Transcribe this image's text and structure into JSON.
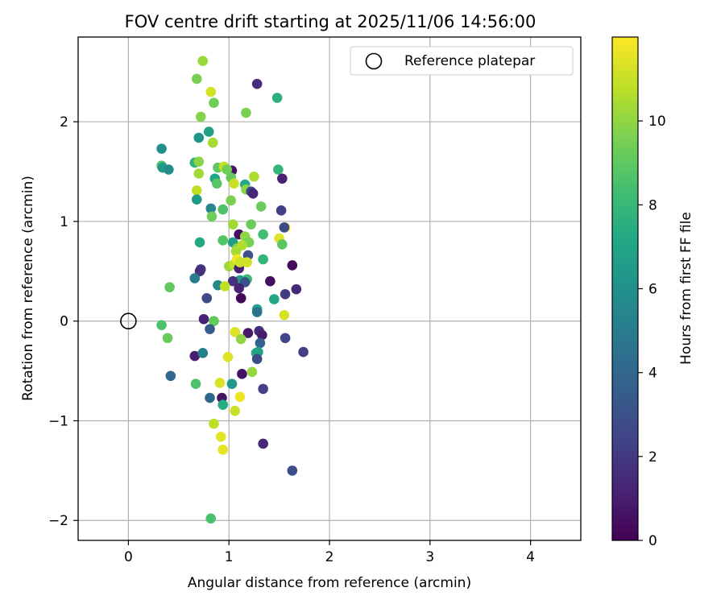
{
  "chart_data": {
    "type": "scatter",
    "title": "FOV centre drift starting at 2025/11/06 14:56:00",
    "xlabel": "Angular distance from reference (arcmin)",
    "ylabel": "Rotation from reference (arcmin)",
    "xlim": [
      -0.5,
      4.5
    ],
    "ylim": [
      -2.2,
      2.85
    ],
    "xticks": [
      0,
      1,
      2,
      3,
      4
    ],
    "yticks": [
      -2,
      -1,
      0,
      1,
      2
    ],
    "grid": true,
    "colorbar": {
      "label": "Hours from first FF file",
      "range": [
        0,
        12
      ],
      "ticks": [
        0,
        2,
        4,
        6,
        8,
        10
      ],
      "colormap": "viridis"
    },
    "reference": {
      "label": "Reference platepar",
      "x": 0,
      "y": 0,
      "marker": "open-circle"
    },
    "legend_position": "top-right",
    "points": [
      {
        "x": 0.74,
        "y": 2.61,
        "h": 10.2
      },
      {
        "x": 0.68,
        "y": 2.43,
        "h": 9.5
      },
      {
        "x": 0.82,
        "y": 2.3,
        "h": 11.2
      },
      {
        "x": 0.85,
        "y": 2.19,
        "h": 9.3
      },
      {
        "x": 1.28,
        "y": 2.38,
        "h": 1.5
      },
      {
        "x": 1.48,
        "y": 2.24,
        "h": 7.6
      },
      {
        "x": 0.72,
        "y": 2.05,
        "h": 9.8
      },
      {
        "x": 1.17,
        "y": 2.09,
        "h": 9.6
      },
      {
        "x": 0.8,
        "y": 1.9,
        "h": 6.8
      },
      {
        "x": 0.7,
        "y": 1.84,
        "h": 6.2
      },
      {
        "x": 0.84,
        "y": 1.79,
        "h": 10.4
      },
      {
        "x": 0.33,
        "y": 1.73,
        "h": 6.0
      },
      {
        "x": 0.66,
        "y": 1.59,
        "h": 7.7
      },
      {
        "x": 0.7,
        "y": 1.6,
        "h": 9.9
      },
      {
        "x": 0.33,
        "y": 1.56,
        "h": 8.7
      },
      {
        "x": 0.34,
        "y": 1.54,
        "h": 6.4
      },
      {
        "x": 0.4,
        "y": 1.52,
        "h": 5.8
      },
      {
        "x": 0.7,
        "y": 1.48,
        "h": 10.3
      },
      {
        "x": 0.89,
        "y": 1.54,
        "h": 9.0
      },
      {
        "x": 0.95,
        "y": 1.55,
        "h": 10.9
      },
      {
        "x": 1.03,
        "y": 1.51,
        "h": 0.7
      },
      {
        "x": 0.98,
        "y": 1.52,
        "h": 9.4
      },
      {
        "x": 0.86,
        "y": 1.43,
        "h": 7.0
      },
      {
        "x": 1.02,
        "y": 1.44,
        "h": 9.1
      },
      {
        "x": 1.05,
        "y": 1.38,
        "h": 11.0
      },
      {
        "x": 0.88,
        "y": 1.38,
        "h": 8.8
      },
      {
        "x": 1.16,
        "y": 1.37,
        "h": 7.2
      },
      {
        "x": 1.25,
        "y": 1.45,
        "h": 10.5
      },
      {
        "x": 1.49,
        "y": 1.52,
        "h": 7.9
      },
      {
        "x": 1.53,
        "y": 1.43,
        "h": 1.1
      },
      {
        "x": 0.68,
        "y": 1.31,
        "h": 10.8
      },
      {
        "x": 1.17,
        "y": 1.32,
        "h": 9.9
      },
      {
        "x": 1.22,
        "y": 1.3,
        "h": 2.4
      },
      {
        "x": 1.24,
        "y": 1.28,
        "h": 1.3
      },
      {
        "x": 0.68,
        "y": 1.22,
        "h": 6.5
      },
      {
        "x": 1.02,
        "y": 1.21,
        "h": 9.6
      },
      {
        "x": 1.32,
        "y": 1.15,
        "h": 9.2
      },
      {
        "x": 0.82,
        "y": 1.13,
        "h": 5.4
      },
      {
        "x": 0.94,
        "y": 1.12,
        "h": 8.6
      },
      {
        "x": 0.83,
        "y": 1.05,
        "h": 9.3
      },
      {
        "x": 1.52,
        "y": 1.11,
        "h": 2.2
      },
      {
        "x": 1.04,
        "y": 0.97,
        "h": 10.3
      },
      {
        "x": 1.22,
        "y": 0.97,
        "h": 9.2
      },
      {
        "x": 1.56,
        "y": 0.94,
        "h": 11.6
      },
      {
        "x": 1.55,
        "y": 0.94,
        "h": 2.7
      },
      {
        "x": 1.1,
        "y": 0.87,
        "h": 0.5
      },
      {
        "x": 1.34,
        "y": 0.87,
        "h": 8.3
      },
      {
        "x": 1.16,
        "y": 0.85,
        "h": 10.0
      },
      {
        "x": 0.94,
        "y": 0.81,
        "h": 8.7
      },
      {
        "x": 1.5,
        "y": 0.83,
        "h": 11.4
      },
      {
        "x": 0.71,
        "y": 0.79,
        "h": 7.3
      },
      {
        "x": 1.04,
        "y": 0.79,
        "h": 6.6
      },
      {
        "x": 1.2,
        "y": 0.79,
        "h": 9.5
      },
      {
        "x": 1.53,
        "y": 0.77,
        "h": 8.9
      },
      {
        "x": 1.08,
        "y": 0.73,
        "h": 9.7
      },
      {
        "x": 1.13,
        "y": 0.76,
        "h": 10.6
      },
      {
        "x": 1.07,
        "y": 0.7,
        "h": 10.4
      },
      {
        "x": 1.19,
        "y": 0.66,
        "h": 2.9
      },
      {
        "x": 1.34,
        "y": 0.62,
        "h": 7.8
      },
      {
        "x": 1.63,
        "y": 0.56,
        "h": 0.3
      },
      {
        "x": 1.0,
        "y": 0.55,
        "h": 10.2
      },
      {
        "x": 1.05,
        "y": 0.57,
        "h": 10.9
      },
      {
        "x": 1.1,
        "y": 0.53,
        "h": 1.0
      },
      {
        "x": 1.18,
        "y": 0.59,
        "h": 11.2
      },
      {
        "x": 0.72,
        "y": 0.52,
        "h": 1.9
      },
      {
        "x": 0.71,
        "y": 0.5,
        "h": 1.6
      },
      {
        "x": 1.08,
        "y": 0.62,
        "h": 11.7
      },
      {
        "x": 1.11,
        "y": 0.59,
        "h": 11.1
      },
      {
        "x": 0.66,
        "y": 0.43,
        "h": 5.0
      },
      {
        "x": 1.11,
        "y": 0.41,
        "h": 6.7
      },
      {
        "x": 1.18,
        "y": 0.42,
        "h": 8.2
      },
      {
        "x": 1.04,
        "y": 0.4,
        "h": 1.7
      },
      {
        "x": 1.16,
        "y": 0.39,
        "h": 3.1
      },
      {
        "x": 1.41,
        "y": 0.4,
        "h": 0.4
      },
      {
        "x": 0.41,
        "y": 0.34,
        "h": 9.0
      },
      {
        "x": 0.89,
        "y": 0.36,
        "h": 5.6
      },
      {
        "x": 0.96,
        "y": 0.35,
        "h": 10.9
      },
      {
        "x": 1.1,
        "y": 0.33,
        "h": 1.2
      },
      {
        "x": 1.56,
        "y": 0.27,
        "h": 2.1
      },
      {
        "x": 1.67,
        "y": 0.32,
        "h": 1.4
      },
      {
        "x": 0.78,
        "y": 0.23,
        "h": 2.6
      },
      {
        "x": 1.12,
        "y": 0.23,
        "h": 0.2
      },
      {
        "x": 1.45,
        "y": 0.22,
        "h": 7.1
      },
      {
        "x": 1.28,
        "y": 0.12,
        "h": 6.9
      },
      {
        "x": 1.28,
        "y": 0.09,
        "h": 4.6
      },
      {
        "x": 1.55,
        "y": 0.06,
        "h": 11.3
      },
      {
        "x": 0.75,
        "y": 0.02,
        "h": 1.1
      },
      {
        "x": 0.85,
        "y": 0.0,
        "h": 9.1
      },
      {
        "x": 0.33,
        "y": -0.04,
        "h": 8.6
      },
      {
        "x": 0.81,
        "y": -0.08,
        "h": 3.4
      },
      {
        "x": 1.06,
        "y": -0.11,
        "h": 11.4
      },
      {
        "x": 1.19,
        "y": -0.12,
        "h": 0.8
      },
      {
        "x": 1.3,
        "y": -0.1,
        "h": 1.5
      },
      {
        "x": 0.39,
        "y": -0.17,
        "h": 9.2
      },
      {
        "x": 1.12,
        "y": -0.18,
        "h": 10.0
      },
      {
        "x": 1.33,
        "y": -0.14,
        "h": 0.9
      },
      {
        "x": 1.56,
        "y": -0.17,
        "h": 2.5
      },
      {
        "x": 1.31,
        "y": -0.22,
        "h": 3.7
      },
      {
        "x": 0.66,
        "y": -0.35,
        "h": 1.0
      },
      {
        "x": 0.74,
        "y": -0.32,
        "h": 5.2
      },
      {
        "x": 0.99,
        "y": -0.36,
        "h": 11.4
      },
      {
        "x": 1.27,
        "y": -0.32,
        "h": 7.4
      },
      {
        "x": 1.29,
        "y": -0.31,
        "h": 6.9
      },
      {
        "x": 1.28,
        "y": -0.38,
        "h": 2.7
      },
      {
        "x": 1.74,
        "y": -0.31,
        "h": 2.2
      },
      {
        "x": 0.42,
        "y": -0.55,
        "h": 4.0
      },
      {
        "x": 1.13,
        "y": -0.53,
        "h": 0.6
      },
      {
        "x": 1.23,
        "y": -0.51,
        "h": 10.1
      },
      {
        "x": 0.67,
        "y": -0.63,
        "h": 8.6
      },
      {
        "x": 0.91,
        "y": -0.62,
        "h": 11.3
      },
      {
        "x": 1.03,
        "y": -0.63,
        "h": 6.3
      },
      {
        "x": 1.34,
        "y": -0.68,
        "h": 2.3
      },
      {
        "x": 0.81,
        "y": -0.77,
        "h": 4.1
      },
      {
        "x": 0.93,
        "y": -0.77,
        "h": 0.6
      },
      {
        "x": 1.11,
        "y": -0.76,
        "h": 11.7
      },
      {
        "x": 0.94,
        "y": -0.84,
        "h": 7.4
      },
      {
        "x": 1.06,
        "y": -0.9,
        "h": 11.0
      },
      {
        "x": 0.85,
        "y": -1.03,
        "h": 10.8
      },
      {
        "x": 0.92,
        "y": -1.16,
        "h": 11.5
      },
      {
        "x": 1.34,
        "y": -1.23,
        "h": 1.3
      },
      {
        "x": 0.94,
        "y": -1.29,
        "h": 11.6
      },
      {
        "x": 1.63,
        "y": -1.5,
        "h": 2.9
      },
      {
        "x": 0.82,
        "y": -1.98,
        "h": 8.5
      }
    ]
  }
}
